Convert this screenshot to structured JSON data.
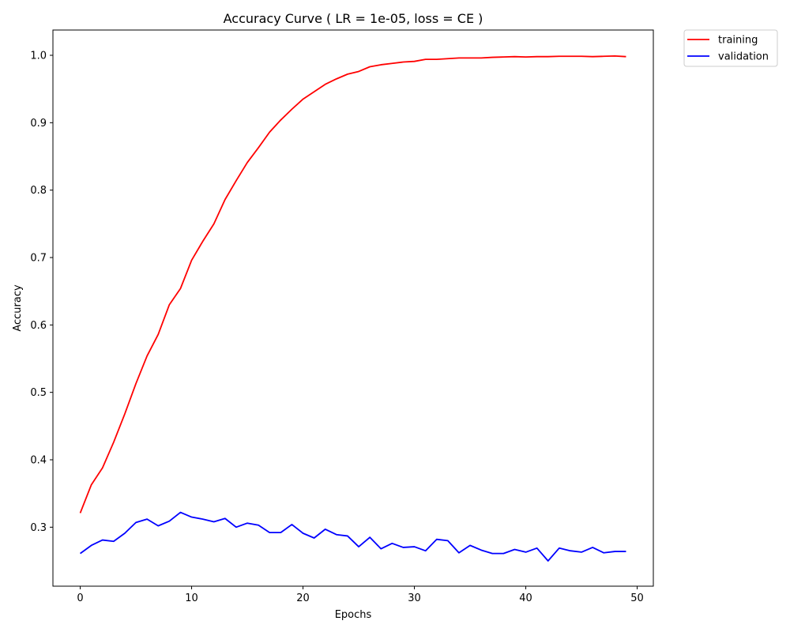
{
  "chart_data": {
    "type": "line",
    "title": "Accuracy Curve ( LR = 1e-05, loss = CE )",
    "xlabel": "Epochs",
    "ylabel": "Accuracy",
    "xlim": [
      -2.45,
      51.45
    ],
    "ylim": [
      0.2125,
      1.0375
    ],
    "xticks": [
      0,
      10,
      20,
      30,
      40,
      50
    ],
    "yticks": [
      0.3,
      0.4,
      0.5,
      0.6,
      0.7,
      0.8,
      0.9,
      1.0
    ],
    "xtick_labels": [
      "0",
      "10",
      "20",
      "30",
      "40",
      "50"
    ],
    "ytick_labels": [
      "0.3",
      "0.4",
      "0.5",
      "0.6",
      "0.7",
      "0.8",
      "0.9",
      "1.0"
    ],
    "grid": false,
    "legend_position": "outside-top-right",
    "x": [
      0,
      1,
      2,
      3,
      4,
      5,
      6,
      7,
      8,
      9,
      10,
      11,
      12,
      13,
      14,
      15,
      16,
      17,
      18,
      19,
      20,
      21,
      22,
      23,
      24,
      25,
      26,
      27,
      28,
      29,
      30,
      31,
      32,
      33,
      34,
      35,
      36,
      37,
      38,
      39,
      40,
      41,
      42,
      43,
      44,
      45,
      46,
      47,
      48,
      49
    ],
    "series": [
      {
        "name": "training",
        "color": "#ff0000",
        "values": [
          0.321,
          0.363,
          0.388,
          0.426,
          0.468,
          0.513,
          0.554,
          0.586,
          0.63,
          0.654,
          0.696,
          0.724,
          0.75,
          0.786,
          0.814,
          0.841,
          0.863,
          0.886,
          0.904,
          0.92,
          0.935,
          0.946,
          0.957,
          0.965,
          0.972,
          0.976,
          0.983,
          0.986,
          0.988,
          0.99,
          0.991,
          0.994,
          0.994,
          0.995,
          0.996,
          0.996,
          0.996,
          0.997,
          0.9975,
          0.998,
          0.9975,
          0.998,
          0.998,
          0.9985,
          0.9985,
          0.9985,
          0.998,
          0.9985,
          0.999,
          0.998
        ]
      },
      {
        "name": "validation",
        "color": "#0000ff",
        "values": [
          0.261,
          0.273,
          0.281,
          0.279,
          0.291,
          0.307,
          0.312,
          0.302,
          0.309,
          0.322,
          0.315,
          0.312,
          0.308,
          0.313,
          0.3,
          0.306,
          0.303,
          0.292,
          0.292,
          0.304,
          0.291,
          0.284,
          0.297,
          0.289,
          0.287,
          0.271,
          0.285,
          0.268,
          0.276,
          0.27,
          0.271,
          0.265,
          0.282,
          0.28,
          0.262,
          0.273,
          0.266,
          0.261,
          0.261,
          0.267,
          0.263,
          0.269,
          0.25,
          0.269,
          0.265,
          0.263,
          0.27,
          0.262,
          0.264,
          0.264
        ]
      }
    ]
  }
}
